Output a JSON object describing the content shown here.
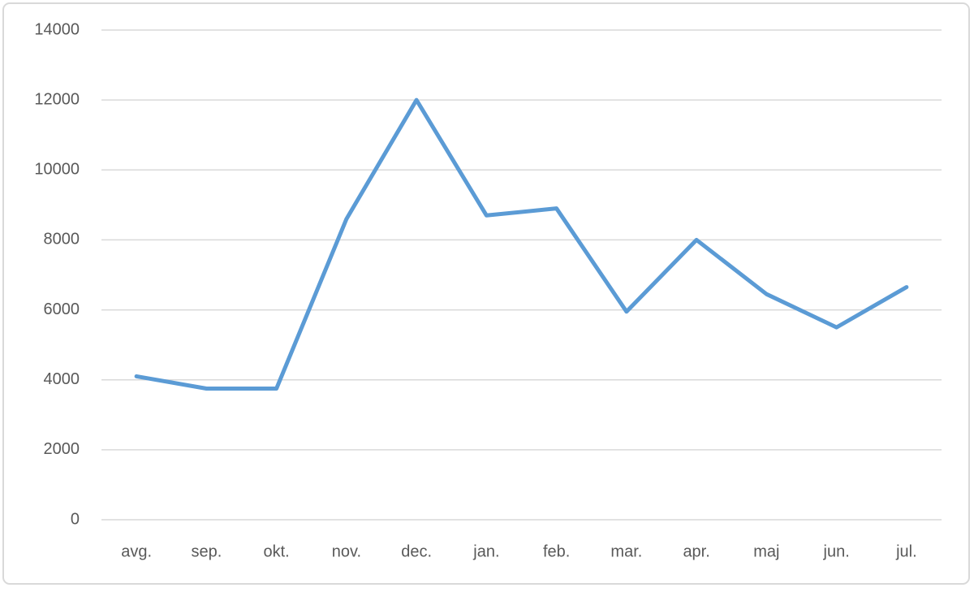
{
  "chart_data": {
    "type": "line",
    "categories": [
      "avg.",
      "sep.",
      "okt.",
      "nov.",
      "dec.",
      "jan.",
      "feb.",
      "mar.",
      "apr.",
      "maj",
      "jun.",
      "jul."
    ],
    "series": [
      {
        "color": "#5b9bd5",
        "values": [
          4100,
          3750,
          3750,
          8600,
          12000,
          8700,
          8900,
          5950,
          8000,
          6450,
          5500,
          6650
        ]
      }
    ],
    "ylim": [
      0,
      14000
    ],
    "yticks": [
      0,
      2000,
      4000,
      6000,
      8000,
      10000,
      12000,
      14000
    ],
    "grid": true
  }
}
